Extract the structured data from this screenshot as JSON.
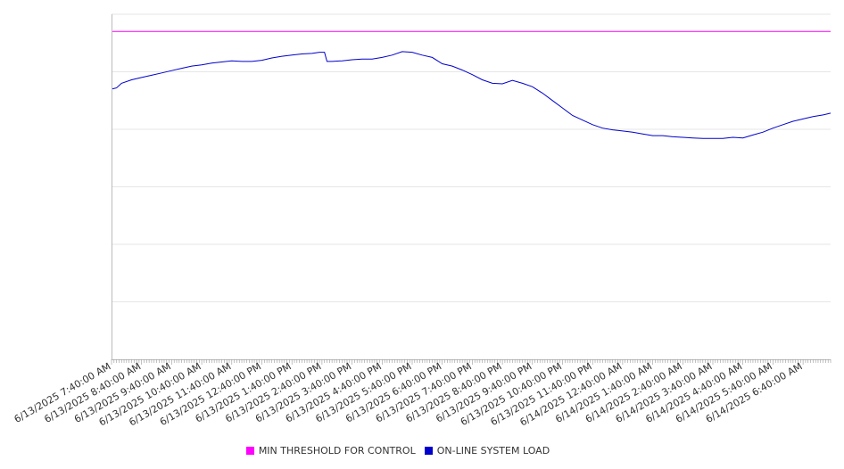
{
  "chart_data": {
    "type": "line",
    "title": "",
    "xlabel": "",
    "ylabel": "",
    "grid": true,
    "legend_position": "bottom",
    "ylim": [
      0,
      6
    ],
    "x_tick_labels": [
      "6/13/2025 7:40:00 AM",
      "6/13/2025 8:40:00 AM",
      "6/13/2025 9:40:00 AM",
      "6/13/2025 10:40:00 AM",
      "6/13/2025 11:40:00 AM",
      "6/13/2025 12:40:00 PM",
      "6/13/2025 1:40:00 PM",
      "6/13/2025 2:40:00 PM",
      "6/13/2025 3:40:00 PM",
      "6/13/2025 4:40:00 PM",
      "6/13/2025 5:40:00 PM",
      "6/13/2025 6:40:00 PM",
      "6/13/2025 7:40:00 PM",
      "6/13/2025 8:40:00 PM",
      "6/13/2025 9:40:00 PM",
      "6/13/2025 10:40:00 PM",
      "6/13/2025 11:40:00 PM",
      "6/14/2025 12:40:00 AM",
      "6/14/2025 1:40:00 AM",
      "6/14/2025 2:40:00 AM",
      "6/14/2025 3:40:00 AM",
      "6/14/2025 4:40:00 AM",
      "6/14/2025 5:40:00 AM",
      "6/14/2025 6:40:00 AM"
    ],
    "x_range": [
      "6/13/2025 7:40:00 AM",
      "6/14/2025 7:35:00 AM"
    ],
    "series": [
      {
        "name": "MIN THRESHOLD FOR CONTROL",
        "color": "#ff00ff",
        "x": [
          "6/13/2025 7:40:00 AM",
          "6/14/2025 7:35:00 AM"
        ],
        "y": [
          5.7,
          5.7
        ]
      },
      {
        "name": "ON-LINE SYSTEM LOAD",
        "color": "#0000cc",
        "x": [
          "6/13/2025 7:40:00 AM",
          "6/13/2025 7:50:00 AM",
          "6/13/2025 8:00:00 AM",
          "6/13/2025 8:20:00 AM",
          "6/13/2025 8:40:00 AM",
          "6/13/2025 9:00:00 AM",
          "6/13/2025 9:20:00 AM",
          "6/13/2025 9:40:00 AM",
          "6/13/2025 10:00:00 AM",
          "6/13/2025 10:20:00 AM",
          "6/13/2025 10:40:00 AM",
          "6/13/2025 11:00:00 AM",
          "6/13/2025 11:20:00 AM",
          "6/13/2025 11:40:00 AM",
          "6/13/2025 12:00:00 PM",
          "6/13/2025 12:20:00 PM",
          "6/13/2025 12:40:00 PM",
          "6/13/2025 1:00:00 PM",
          "6/13/2025 1:20:00 PM",
          "6/13/2025 1:40:00 PM",
          "6/13/2025 2:00:00 PM",
          "6/13/2025 2:20:00 PM",
          "6/13/2025 2:35:00 PM",
          "6/13/2025 2:45:00 PM",
          "6/13/2025 2:50:00 PM",
          "6/13/2025 3:00:00 PM",
          "6/13/2025 3:20:00 PM",
          "6/13/2025 3:40:00 PM",
          "6/13/2025 4:00:00 PM",
          "6/13/2025 4:20:00 PM",
          "6/13/2025 4:40:00 PM",
          "6/13/2025 5:00:00 PM",
          "6/13/2025 5:20:00 PM",
          "6/13/2025 5:40:00 PM",
          "6/13/2025 6:00:00 PM",
          "6/13/2025 6:20:00 PM",
          "6/13/2025 6:40:00 PM",
          "6/13/2025 7:00:00 PM",
          "6/13/2025 7:20:00 PM",
          "6/13/2025 7:40:00 PM",
          "6/13/2025 8:00:00 PM",
          "6/13/2025 8:20:00 PM",
          "6/13/2025 8:40:00 PM",
          "6/13/2025 9:00:00 PM",
          "6/13/2025 9:20:00 PM",
          "6/13/2025 9:40:00 PM",
          "6/13/2025 10:00:00 PM",
          "6/13/2025 10:20:00 PM",
          "6/13/2025 10:40:00 PM",
          "6/13/2025 11:00:00 PM",
          "6/13/2025 11:20:00 PM",
          "6/13/2025 11:40:00 PM",
          "6/14/2025 12:00:00 AM",
          "6/14/2025 12:20:00 AM",
          "6/14/2025 12:40:00 AM",
          "6/14/2025 1:00:00 AM",
          "6/14/2025 1:20:00 AM",
          "6/14/2025 1:40:00 AM",
          "6/14/2025 2:00:00 AM",
          "6/14/2025 2:20:00 AM",
          "6/14/2025 2:40:00 AM",
          "6/14/2025 3:00:00 AM",
          "6/14/2025 3:20:00 AM",
          "6/14/2025 3:40:00 AM",
          "6/14/2025 4:00:00 AM",
          "6/14/2025 4:20:00 AM",
          "6/14/2025 4:40:00 AM",
          "6/14/2025 5:00:00 AM",
          "6/14/2025 5:20:00 AM",
          "6/14/2025 5:40:00 AM",
          "6/14/2025 6:00:00 AM",
          "6/14/2025 6:20:00 AM",
          "6/14/2025 6:40:00 AM",
          "6/14/2025 7:00:00 AM",
          "6/14/2025 7:20:00 AM",
          "6/14/2025 7:35:00 AM"
        ],
        "y": [
          4.7,
          4.72,
          4.8,
          4.86,
          4.9,
          4.94,
          4.98,
          5.02,
          5.06,
          5.1,
          5.12,
          5.15,
          5.17,
          5.19,
          5.18,
          5.18,
          5.2,
          5.24,
          5.27,
          5.29,
          5.31,
          5.32,
          5.34,
          5.34,
          5.18,
          5.18,
          5.19,
          5.21,
          5.22,
          5.22,
          5.25,
          5.29,
          5.35,
          5.34,
          5.29,
          5.25,
          5.14,
          5.1,
          5.03,
          4.95,
          4.86,
          4.8,
          4.79,
          4.85,
          4.8,
          4.74,
          4.63,
          4.5,
          4.37,
          4.24,
          4.16,
          4.08,
          4.02,
          3.99,
          3.97,
          3.95,
          3.92,
          3.89,
          3.89,
          3.87,
          3.86,
          3.85,
          3.84,
          3.84,
          3.84,
          3.86,
          3.85,
          3.9,
          3.95,
          4.02,
          4.08,
          4.14,
          4.18,
          4.22,
          4.25,
          4.28
        ]
      }
    ]
  }
}
